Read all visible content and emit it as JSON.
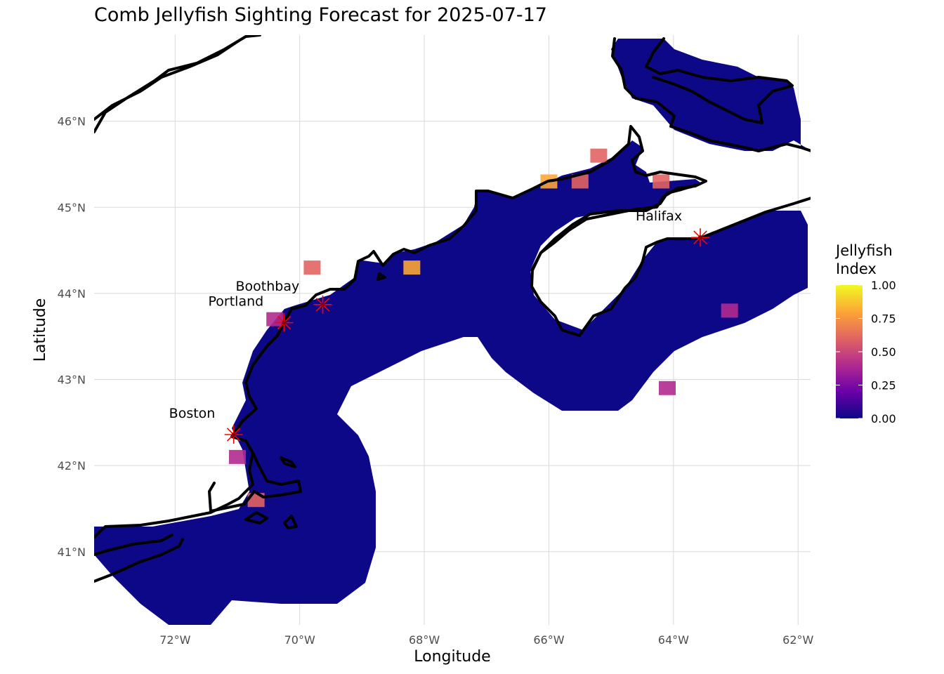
{
  "title": "Comb Jellyfish Sighting Forecast for 2025-07-17",
  "xlabel": "Longitude",
  "ylabel": "Latitude",
  "x_ticks": [
    {
      "value": -72,
      "label": "72°W"
    },
    {
      "value": -70,
      "label": "70°W"
    },
    {
      "value": -68,
      "label": "68°W"
    },
    {
      "value": -66,
      "label": "66°W"
    },
    {
      "value": -64,
      "label": "64°W"
    },
    {
      "value": -62,
      "label": "62°W"
    }
  ],
  "y_ticks": [
    {
      "value": 41,
      "label": "41°N"
    },
    {
      "value": 42,
      "label": "42°N"
    },
    {
      "value": 43,
      "label": "43°N"
    },
    {
      "value": 44,
      "label": "44°N"
    },
    {
      "value": 45,
      "label": "45°N"
    },
    {
      "value": 46,
      "label": "46°N"
    }
  ],
  "xlim": [
    -73.3,
    -61.8
  ],
  "ylim": [
    40.15,
    47.0
  ],
  "legend": {
    "title_line1": "Jellyfish",
    "title_line2": "Index",
    "placement": "right",
    "ticks": [
      "1.00",
      "0.75",
      "0.50",
      "0.25",
      "0.00"
    ],
    "range": [
      0,
      1
    ],
    "palette": [
      "#0d0887",
      "#6a00a8",
      "#b12a90",
      "#e16462",
      "#fca636",
      "#f0f921"
    ]
  },
  "cities": [
    {
      "name": "Boston",
      "lon": -71.06,
      "lat": 42.36
    },
    {
      "name": "Portland",
      "lon": -70.25,
      "lat": 43.66
    },
    {
      "name": "Boothbay",
      "lon": -69.63,
      "lat": 43.87
    },
    {
      "name": "Halifax",
      "lon": -63.57,
      "lat": 44.65
    }
  ],
  "marker_color": "#ff0000",
  "grid": true,
  "chart_data": {
    "type": "heatmap",
    "title": "Comb Jellyfish Sighting Forecast for 2025-07-17",
    "xlabel": "Longitude",
    "ylabel": "Latitude",
    "value_name": "Jellyfish Index",
    "value_range": [
      0,
      1
    ],
    "dominant_value": 0.05,
    "hotspots": [
      {
        "lon": -66.0,
        "lat": 45.3,
        "value": 0.85
      },
      {
        "lon": -65.5,
        "lat": 45.3,
        "value": 0.6
      },
      {
        "lon": -65.2,
        "lat": 45.6,
        "value": 0.6
      },
      {
        "lon": -64.2,
        "lat": 45.3,
        "value": 0.5
      },
      {
        "lon": -68.2,
        "lat": 44.3,
        "value": 0.7
      },
      {
        "lon": -69.8,
        "lat": 44.3,
        "value": 0.55
      },
      {
        "lon": -70.4,
        "lat": 43.7,
        "value": 0.45
      },
      {
        "lon": -70.7,
        "lat": 41.6,
        "value": 0.55
      },
      {
        "lon": -71.0,
        "lat": 42.1,
        "value": 0.45
      },
      {
        "lon": -63.1,
        "lat": 43.8,
        "value": 0.45
      },
      {
        "lon": -64.1,
        "lat": 42.9,
        "value": 0.4
      }
    ]
  }
}
